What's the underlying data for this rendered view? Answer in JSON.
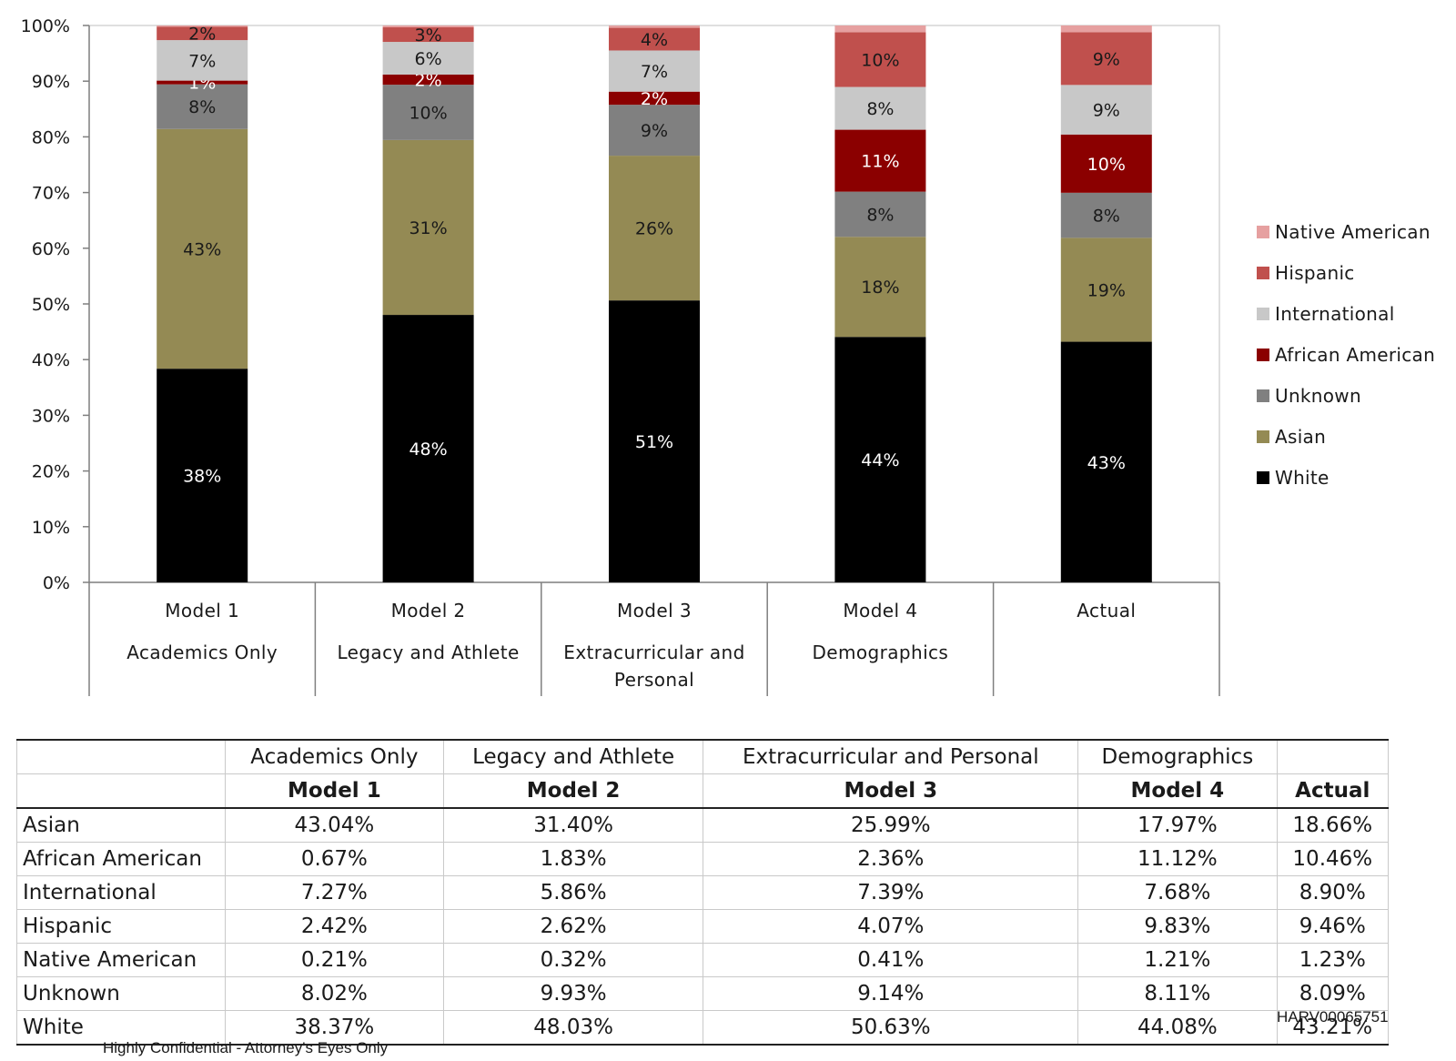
{
  "chart_data": {
    "type": "bar",
    "stacked": true,
    "categories": [
      "Model 1",
      "Model 2",
      "Model 3",
      "Model 4",
      "Actual"
    ],
    "category_sublabels": [
      "Academics Only",
      "Legacy and Athlete",
      "Extracurricular and Personal",
      "Demographics",
      ""
    ],
    "series": [
      {
        "name": "White",
        "color": "#000000",
        "values": [
          38.37,
          48.03,
          50.63,
          44.08,
          43.21
        ],
        "labels": [
          "38%",
          "48%",
          "51%",
          "44%",
          "43%"
        ]
      },
      {
        "name": "Asian",
        "color": "#948a54",
        "values": [
          43.04,
          31.4,
          25.99,
          17.97,
          18.66
        ],
        "labels": [
          "43%",
          "31%",
          "26%",
          "18%",
          "19%"
        ]
      },
      {
        "name": "Unknown",
        "color": "#808080",
        "values": [
          8.02,
          9.93,
          9.14,
          8.11,
          8.09
        ],
        "labels": [
          "8%",
          "10%",
          "9%",
          "8%",
          "8%"
        ]
      },
      {
        "name": "African American",
        "color": "#8b0000",
        "values": [
          0.67,
          1.83,
          2.36,
          11.12,
          10.46
        ],
        "labels": [
          "1%",
          "2%",
          "2%",
          "11%",
          "10%"
        ]
      },
      {
        "name": "International",
        "color": "#c8c8c8",
        "values": [
          7.27,
          5.86,
          7.39,
          7.68,
          8.9
        ],
        "labels": [
          "7%",
          "6%",
          "7%",
          "8%",
          "9%"
        ]
      },
      {
        "name": "Hispanic",
        "color": "#c0504d",
        "values": [
          2.42,
          2.62,
          4.07,
          9.83,
          9.46
        ],
        "labels": [
          "2%",
          "3%",
          "4%",
          "10%",
          "9%"
        ]
      },
      {
        "name": "Native American",
        "color": "#e6a0a0",
        "values": [
          0.21,
          0.32,
          0.41,
          1.21,
          1.23
        ],
        "labels": [
          "",
          "",
          "",
          "",
          ""
        ]
      }
    ],
    "legend_order": [
      "Native American",
      "Hispanic",
      "International",
      "African American",
      "Unknown",
      "Asian",
      "White"
    ],
    "legend_position": "right",
    "yticks": [
      "0%",
      "10%",
      "20%",
      "30%",
      "40%",
      "50%",
      "60%",
      "70%",
      "80%",
      "90%",
      "100%"
    ],
    "ylim": [
      0,
      100
    ],
    "title": "",
    "xlabel": "",
    "ylabel": ""
  },
  "table": {
    "header_groups": [
      "Academics Only",
      "Legacy and Athlete",
      "Extracurricular and Personal",
      "Demographics",
      ""
    ],
    "header_models": [
      "Model 1",
      "Model 2",
      "Model 3",
      "Model 4",
      "Actual"
    ],
    "rows": [
      {
        "label": "Asian",
        "cells": [
          "43.04%",
          "31.40%",
          "25.99%",
          "17.97%",
          "18.66%"
        ]
      },
      {
        "label": "African American",
        "cells": [
          "0.67%",
          "1.83%",
          "2.36%",
          "11.12%",
          "10.46%"
        ]
      },
      {
        "label": "International",
        "cells": [
          "7.27%",
          "5.86%",
          "7.39%",
          "7.68%",
          "8.90%"
        ]
      },
      {
        "label": "Hispanic",
        "cells": [
          "2.42%",
          "2.62%",
          "4.07%",
          "9.83%",
          "9.46%"
        ]
      },
      {
        "label": "Native American",
        "cells": [
          "0.21%",
          "0.32%",
          "0.41%",
          "1.21%",
          "1.23%"
        ]
      },
      {
        "label": "Unknown",
        "cells": [
          "8.02%",
          "9.93%",
          "9.14%",
          "8.11%",
          "8.09%"
        ]
      },
      {
        "label": "White",
        "cells": [
          "38.37%",
          "48.03%",
          "50.63%",
          "44.08%",
          "43.21%"
        ]
      }
    ]
  },
  "stamps": {
    "bates": "HARV00065751",
    "confidential": "Highly Confidential - Attorney's Eyes Only"
  }
}
